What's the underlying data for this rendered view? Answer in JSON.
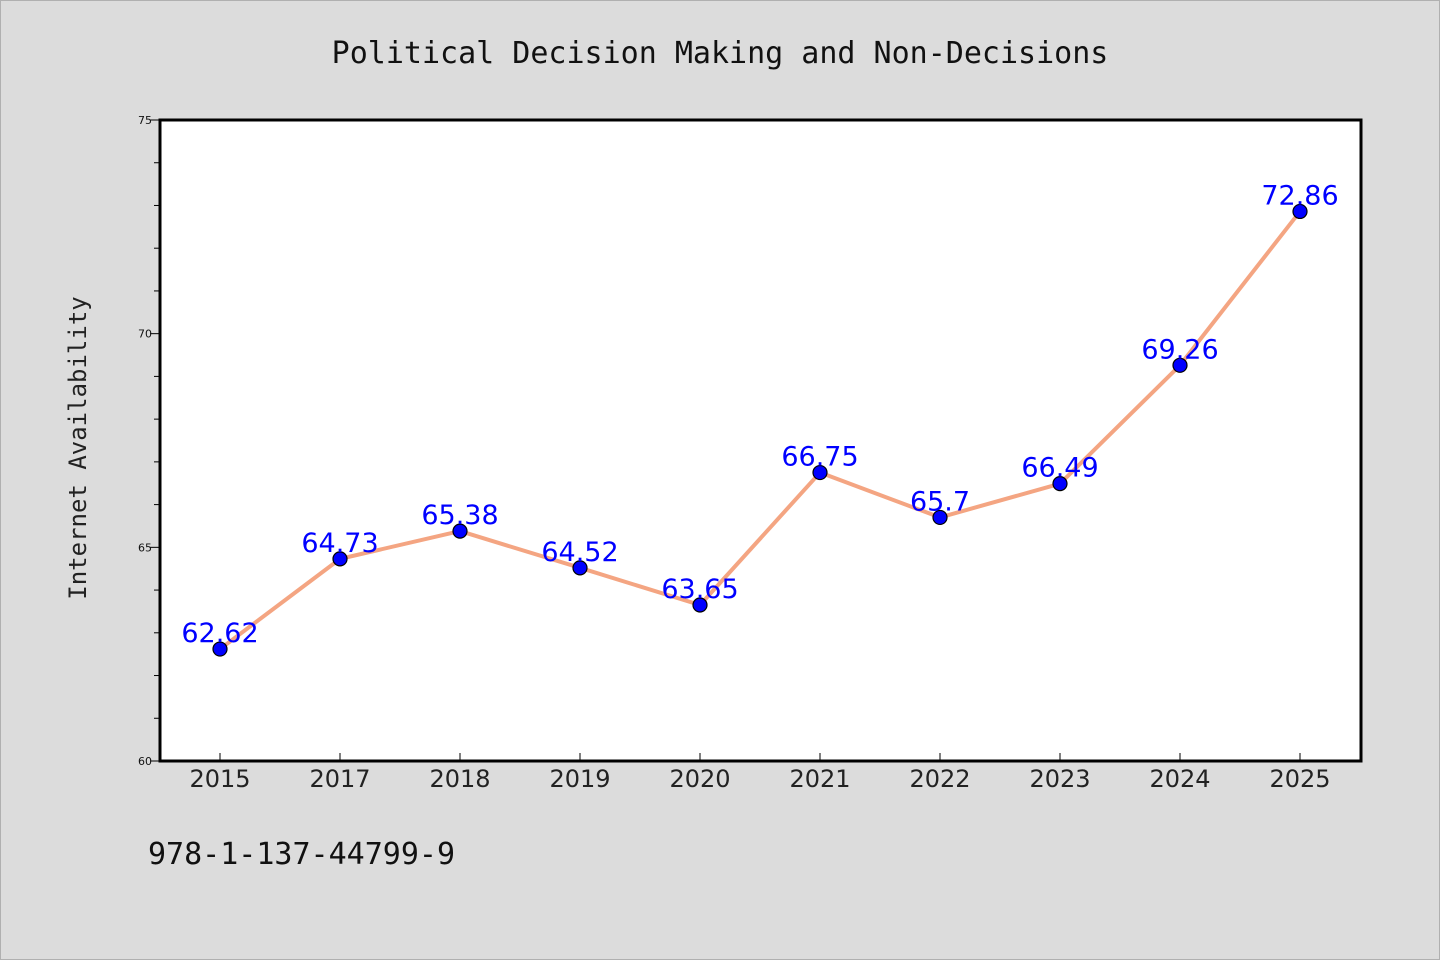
{
  "chart_data": {
    "type": "line",
    "title": "Political Decision Making and Non-Decisions",
    "xlabel": "",
    "ylabel": "Internet Availability",
    "categories": [
      "2015",
      "2017",
      "2018",
      "2019",
      "2020",
      "2021",
      "2022",
      "2023",
      "2024",
      "2025"
    ],
    "series": [
      {
        "values": [
          62.62,
          64.73,
          65.38,
          64.52,
          63.65,
          66.75,
          65.7,
          66.49,
          69.26,
          72.86
        ],
        "data_labels": [
          "62.62",
          "64.73",
          "65.38",
          "64.52",
          "63.65",
          "66.75",
          "65.7",
          "66.49",
          "69.26",
          "72.86"
        ],
        "line_color": "#f4a582",
        "marker_color": "#0000ff"
      }
    ],
    "ylim": [
      60,
      75
    ],
    "yticks": [
      "60",
      "65",
      "70",
      "75"
    ],
    "grid": false,
    "legend": "none"
  },
  "annotation": {
    "isbn": "978-1-137-44799-9"
  },
  "colors": {
    "background": "#dcdcdc",
    "plot_background": "#ffffff",
    "line": "#f4a582",
    "marker": "#0000ff",
    "data_label": "#0000ff"
  }
}
